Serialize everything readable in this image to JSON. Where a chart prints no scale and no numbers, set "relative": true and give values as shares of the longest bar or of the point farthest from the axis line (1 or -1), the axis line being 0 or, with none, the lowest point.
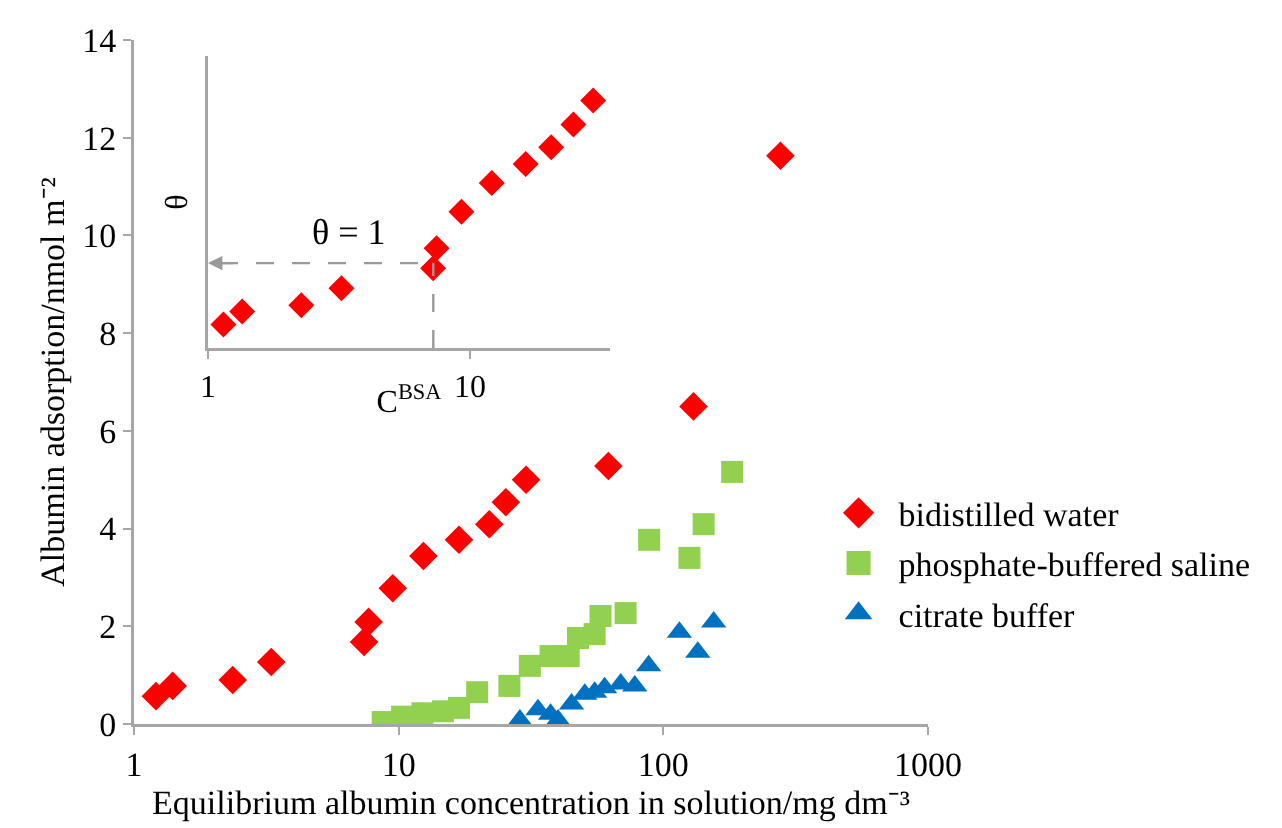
{
  "chart_data": [
    {
      "type": "scatter",
      "xlabel": "Equilibrium albumin concentration in solution/mg dm⁻³",
      "ylabel": "Albumin adsorption/nmol m⁻²",
      "log": "x",
      "xlim": [
        1,
        1000
      ],
      "xticks": [
        1,
        10,
        100,
        1000
      ],
      "ylim": [
        0,
        14
      ],
      "yticks": [
        0,
        2,
        4,
        6,
        8,
        10,
        12,
        14
      ],
      "legend": "right",
      "series": [
        {
          "name": "bidistilled water",
          "color": "#ff0000",
          "marker": "diamond",
          "x": [
            1.21,
            1.4,
            2.36,
            3.3,
            7.4,
            7.7,
            9.5,
            12.4,
            16.9,
            22,
            25.4,
            30.3,
            62,
            130,
            277
          ],
          "values": [
            0.57,
            0.78,
            0.9,
            1.27,
            1.68,
            2.09,
            2.78,
            3.44,
            3.77,
            4.09,
            4.54,
            5.0,
            5.28,
            6.5,
            11.63
          ]
        },
        {
          "name": "phosphate-buffered saline",
          "color": "#92d050",
          "marker": "square",
          "x": [
            8.7,
            10.3,
            12.3,
            14.7,
            16.9,
            19.8,
            26.2,
            31.3,
            37.5,
            43.9,
            47.6,
            55,
            57.9,
            72,
            88.4,
            125.5,
            142,
            182
          ],
          "values": [
            0.04,
            0.15,
            0.22,
            0.26,
            0.33,
            0.65,
            0.78,
            1.19,
            1.39,
            1.39,
            1.76,
            1.84,
            2.21,
            2.27,
            3.77,
            3.4,
            4.09,
            5.16
          ]
        },
        {
          "name": "citrate buffer",
          "color": "#0070c0",
          "marker": "triangle",
          "x": [
            28.7,
            33.6,
            37.5,
            40,
            45,
            50.5,
            55,
            60,
            69,
            78,
            88,
            115,
            135,
            155
          ],
          "values": [
            0.08,
            0.29,
            0.2,
            0.08,
            0.41,
            0.61,
            0.65,
            0.74,
            0.82,
            0.78,
            1.19,
            1.88,
            1.47,
            2.09
          ]
        }
      ]
    },
    {
      "type": "scatter",
      "xlabel": "C$^{BSA}$",
      "ylabel": "θ",
      "log": "x",
      "xlim": [
        1,
        34.2
      ],
      "xticks": [
        1,
        10
      ],
      "relative": true,
      "tick_labels": "x",
      "annotations": [
        {
          "text": "θ = 1",
          "x": 7.24,
          "y": 0.343
        }
      ],
      "series": [
        {
          "color": "#ff0000",
          "marker": "diamond",
          "x": [
            1.145,
            1.35,
            2.27,
            3.23,
            7.23,
            7.45,
            9.27,
            12.1,
            16.3,
            20.4,
            24.8,
            29.5
          ],
          "values": [
            0.095,
            0.148,
            0.173,
            0.241,
            0.322,
            0.403,
            0.551,
            0.667,
            0.744,
            0.811,
            0.903,
            1.0
          ]
        }
      ]
    }
  ]
}
